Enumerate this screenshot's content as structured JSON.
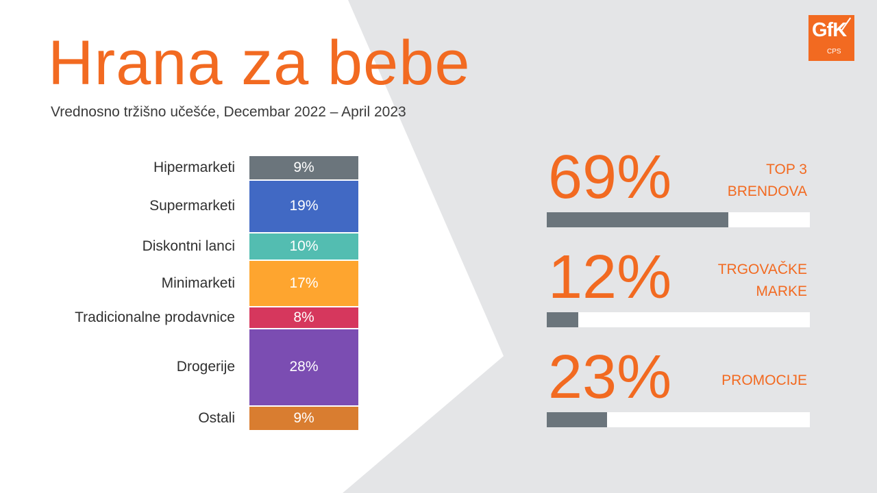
{
  "header": {
    "title": "Hrana za bebe",
    "subtitle": "Vrednosno tržišno učešće, Decembar 2022 – April 2023"
  },
  "logo": {
    "name": "GfK",
    "sub": "CPS"
  },
  "colors": {
    "accent": "#f26a21",
    "background": "#e4e5e7",
    "panel": "#ffffff",
    "kpi_bar": "#6b757c"
  },
  "chart_data": {
    "type": "bar",
    "stacked": true,
    "categories": [
      "Hipermarketi",
      "Supermarketi",
      "Diskontni lanci",
      "Minimarketi",
      "Tradicionalne prodavnice",
      "Drogerije",
      "Ostali"
    ],
    "values": [
      9,
      19,
      10,
      17,
      8,
      28,
      9
    ],
    "value_labels": [
      "9%",
      "19%",
      "10%",
      "17%",
      "8%",
      "28%",
      "9%"
    ],
    "colors": [
      "#6b757c",
      "#4169c4",
      "#53bdb1",
      "#fea52f",
      "#d6375d",
      "#7b4db2",
      "#d97d30"
    ],
    "unit": "%"
  },
  "kpis": [
    {
      "value": "69%",
      "label_lines": [
        "TOP 3",
        "BRENDOVA"
      ],
      "fraction": 0.69
    },
    {
      "value": "12%",
      "label_lines": [
        "TRGOVAČKE",
        "MARKE"
      ],
      "fraction": 0.12
    },
    {
      "value": "23%",
      "label_lines": [
        "PROMOCIJE"
      ],
      "fraction": 0.23
    }
  ]
}
